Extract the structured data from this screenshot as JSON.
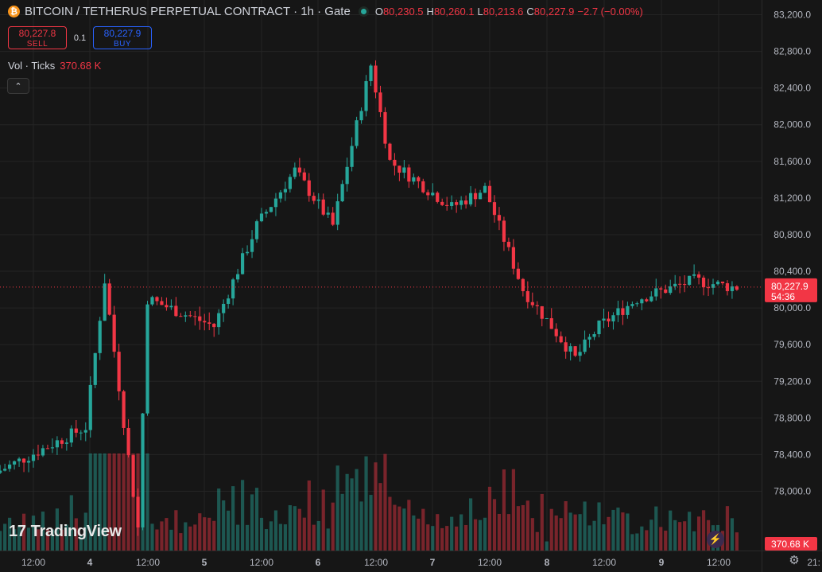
{
  "symbol": {
    "coin_icon": "bitcoin-icon",
    "title": "BITCOIN / TETHERUS PERPETUAL CONTRACT · 1h · Gate",
    "ohlc": {
      "o_label": "O",
      "o": "80,230.5",
      "h_label": "H",
      "h": "80,260.1",
      "l_label": "L",
      "l": "80,213.6",
      "c_label": "C",
      "c": "80,227.9",
      "change": "−2.7 (−0.00%)"
    }
  },
  "trade": {
    "sell_price": "80,227.8",
    "sell_label": "SELL",
    "spread": "0.1",
    "buy_price": "80,227.9",
    "buy_label": "BUY"
  },
  "volume_legend": {
    "label": "Vol · Ticks",
    "value": "370.68 K"
  },
  "branding": {
    "logo_text": "TradingView"
  },
  "colors": {
    "up": "#26a69a",
    "down": "#f23645",
    "background": "#161616",
    "grid": "#242424"
  },
  "chart_data": {
    "type": "candlestick",
    "price_axis": {
      "ticks": [
        "83,200.0",
        "82,800.0",
        "82,400.0",
        "82,000.0",
        "81,600.0",
        "81,200.0",
        "80,800.0",
        "80,400.0",
        "80,000.0",
        "79,600.0",
        "79,200.0",
        "78,800.0",
        "78,400.0",
        "78,000.0"
      ],
      "range": [
        77500,
        83300
      ]
    },
    "time_axis": {
      "labels": [
        "12:00",
        "4",
        "12:00",
        "5",
        "12:00",
        "6",
        "12:00",
        "7",
        "12:00",
        "8",
        "12:00",
        "9",
        "12:00",
        "21:"
      ]
    },
    "last_price": {
      "price": "80,227.9",
      "countdown": "54:36"
    },
    "last_volume": "370.68 K",
    "key_points": [
      {
        "time": "3 05:00",
        "price": 78200
      },
      {
        "time": "4 00:00",
        "price": 78700
      },
      {
        "time": "4 04:00",
        "price": 80300
      },
      {
        "time": "4 11:00",
        "price": 77600
      },
      {
        "time": "4 13:00",
        "price": 80100
      },
      {
        "time": "5 03:00",
        "price": 79800
      },
      {
        "time": "5 12:00",
        "price": 80900
      },
      {
        "time": "5 20:00",
        "price": 81500
      },
      {
        "time": "6 04:00",
        "price": 80900
      },
      {
        "time": "6 12:00",
        "price": 82650
      },
      {
        "time": "6 16:00",
        "price": 81600
      },
      {
        "time": "7 05:00",
        "price": 81100
      },
      {
        "time": "7 12:00",
        "price": 81300
      },
      {
        "time": "7 20:00",
        "price": 80200
      },
      {
        "time": "8 02:00",
        "price": 79800
      },
      {
        "time": "8 07:00",
        "price": 79450
      },
      {
        "time": "8 12:00",
        "price": 79800
      },
      {
        "time": "8 20:00",
        "price": 80100
      },
      {
        "time": "9 08:00",
        "price": 80300
      },
      {
        "time": "9 16:00",
        "price": 80228
      }
    ]
  }
}
